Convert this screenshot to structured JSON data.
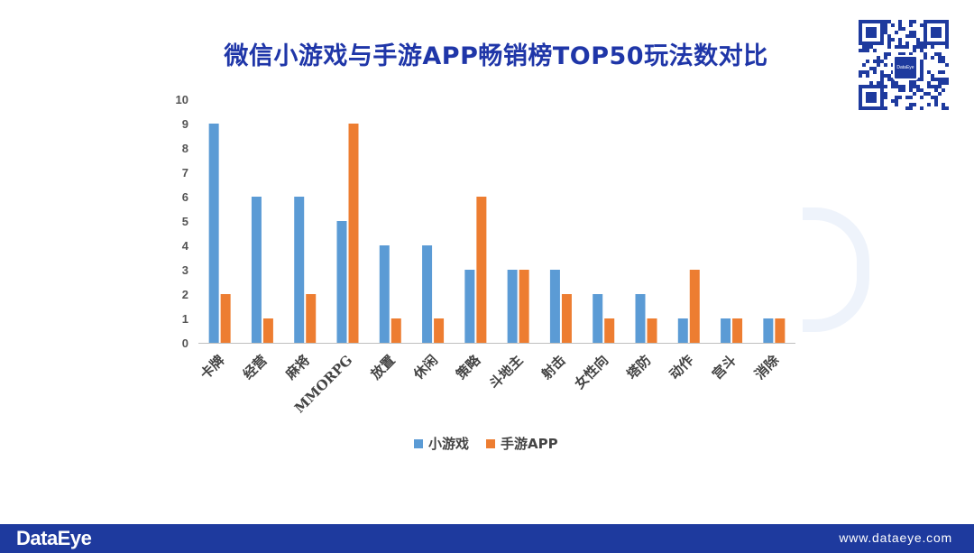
{
  "title": "微信小游戏与手游APP畅销榜TOP50玩法数对比",
  "footer": {
    "brand": "DataEye",
    "url": "www.dataeye.com"
  },
  "qr": {
    "logo_text": "DataEye"
  },
  "colors": {
    "series1": "#5b9bd5",
    "series2": "#ed7d31",
    "title": "#1f36a8",
    "footer": "#1e3a9e"
  },
  "chart_data": {
    "type": "bar",
    "title": "微信小游戏与手游APP畅销榜TOP50玩法数对比",
    "categories": [
      "卡牌",
      "经营",
      "麻将",
      "MMORPG",
      "放置",
      "休闲",
      "策略",
      "斗地主",
      "射击",
      "女性向",
      "塔防",
      "动作",
      "宫斗",
      "消除"
    ],
    "series": [
      {
        "name": "小游戏",
        "values": [
          9,
          6,
          6,
          5,
          4,
          4,
          3,
          3,
          3,
          2,
          2,
          1,
          1,
          1
        ]
      },
      {
        "name": "手游APP",
        "values": [
          2,
          1,
          2,
          9,
          1,
          1,
          6,
          3,
          2,
          1,
          1,
          3,
          1,
          1
        ]
      }
    ],
    "yticks": [
      "0",
      "1",
      "2",
      "3",
      "4",
      "5",
      "6",
      "7",
      "8",
      "9",
      "10"
    ],
    "ylim": [
      0,
      10
    ],
    "xlabel": "",
    "ylabel": "",
    "legend": "bottom"
  }
}
